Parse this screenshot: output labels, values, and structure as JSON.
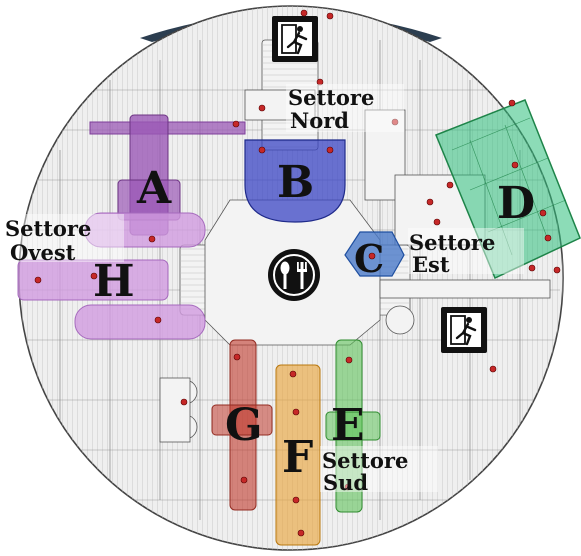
{
  "map": {
    "zones": [
      {
        "id": "A",
        "label": "A",
        "color": "#9b59b6"
      },
      {
        "id": "B",
        "label": "B",
        "color": "#3b46c4"
      },
      {
        "id": "C",
        "label": "C",
        "color": "#4a79c8"
      },
      {
        "id": "D",
        "label": "D",
        "color": "#2ebf7c"
      },
      {
        "id": "E",
        "label": "E",
        "color": "#5fc25a"
      },
      {
        "id": "F",
        "label": "F",
        "color": "#e8a640"
      },
      {
        "id": "G",
        "label": "G",
        "color": "#c0392b"
      },
      {
        "id": "H",
        "label": "H",
        "color": "#c97ad6"
      }
    ],
    "sectors": {
      "nord": {
        "word": "Settore",
        "name": "Nord"
      },
      "ovest": {
        "word": "Settore",
        "name": "Ovest"
      },
      "est": {
        "word": "Settore",
        "name": "Est"
      },
      "sud": {
        "word": "Settore",
        "name": "Sud"
      }
    },
    "icons": {
      "exit_top": "emergency-exit-icon",
      "exit_right": "emergency-exit-icon",
      "food": "food-court-icon"
    }
  }
}
